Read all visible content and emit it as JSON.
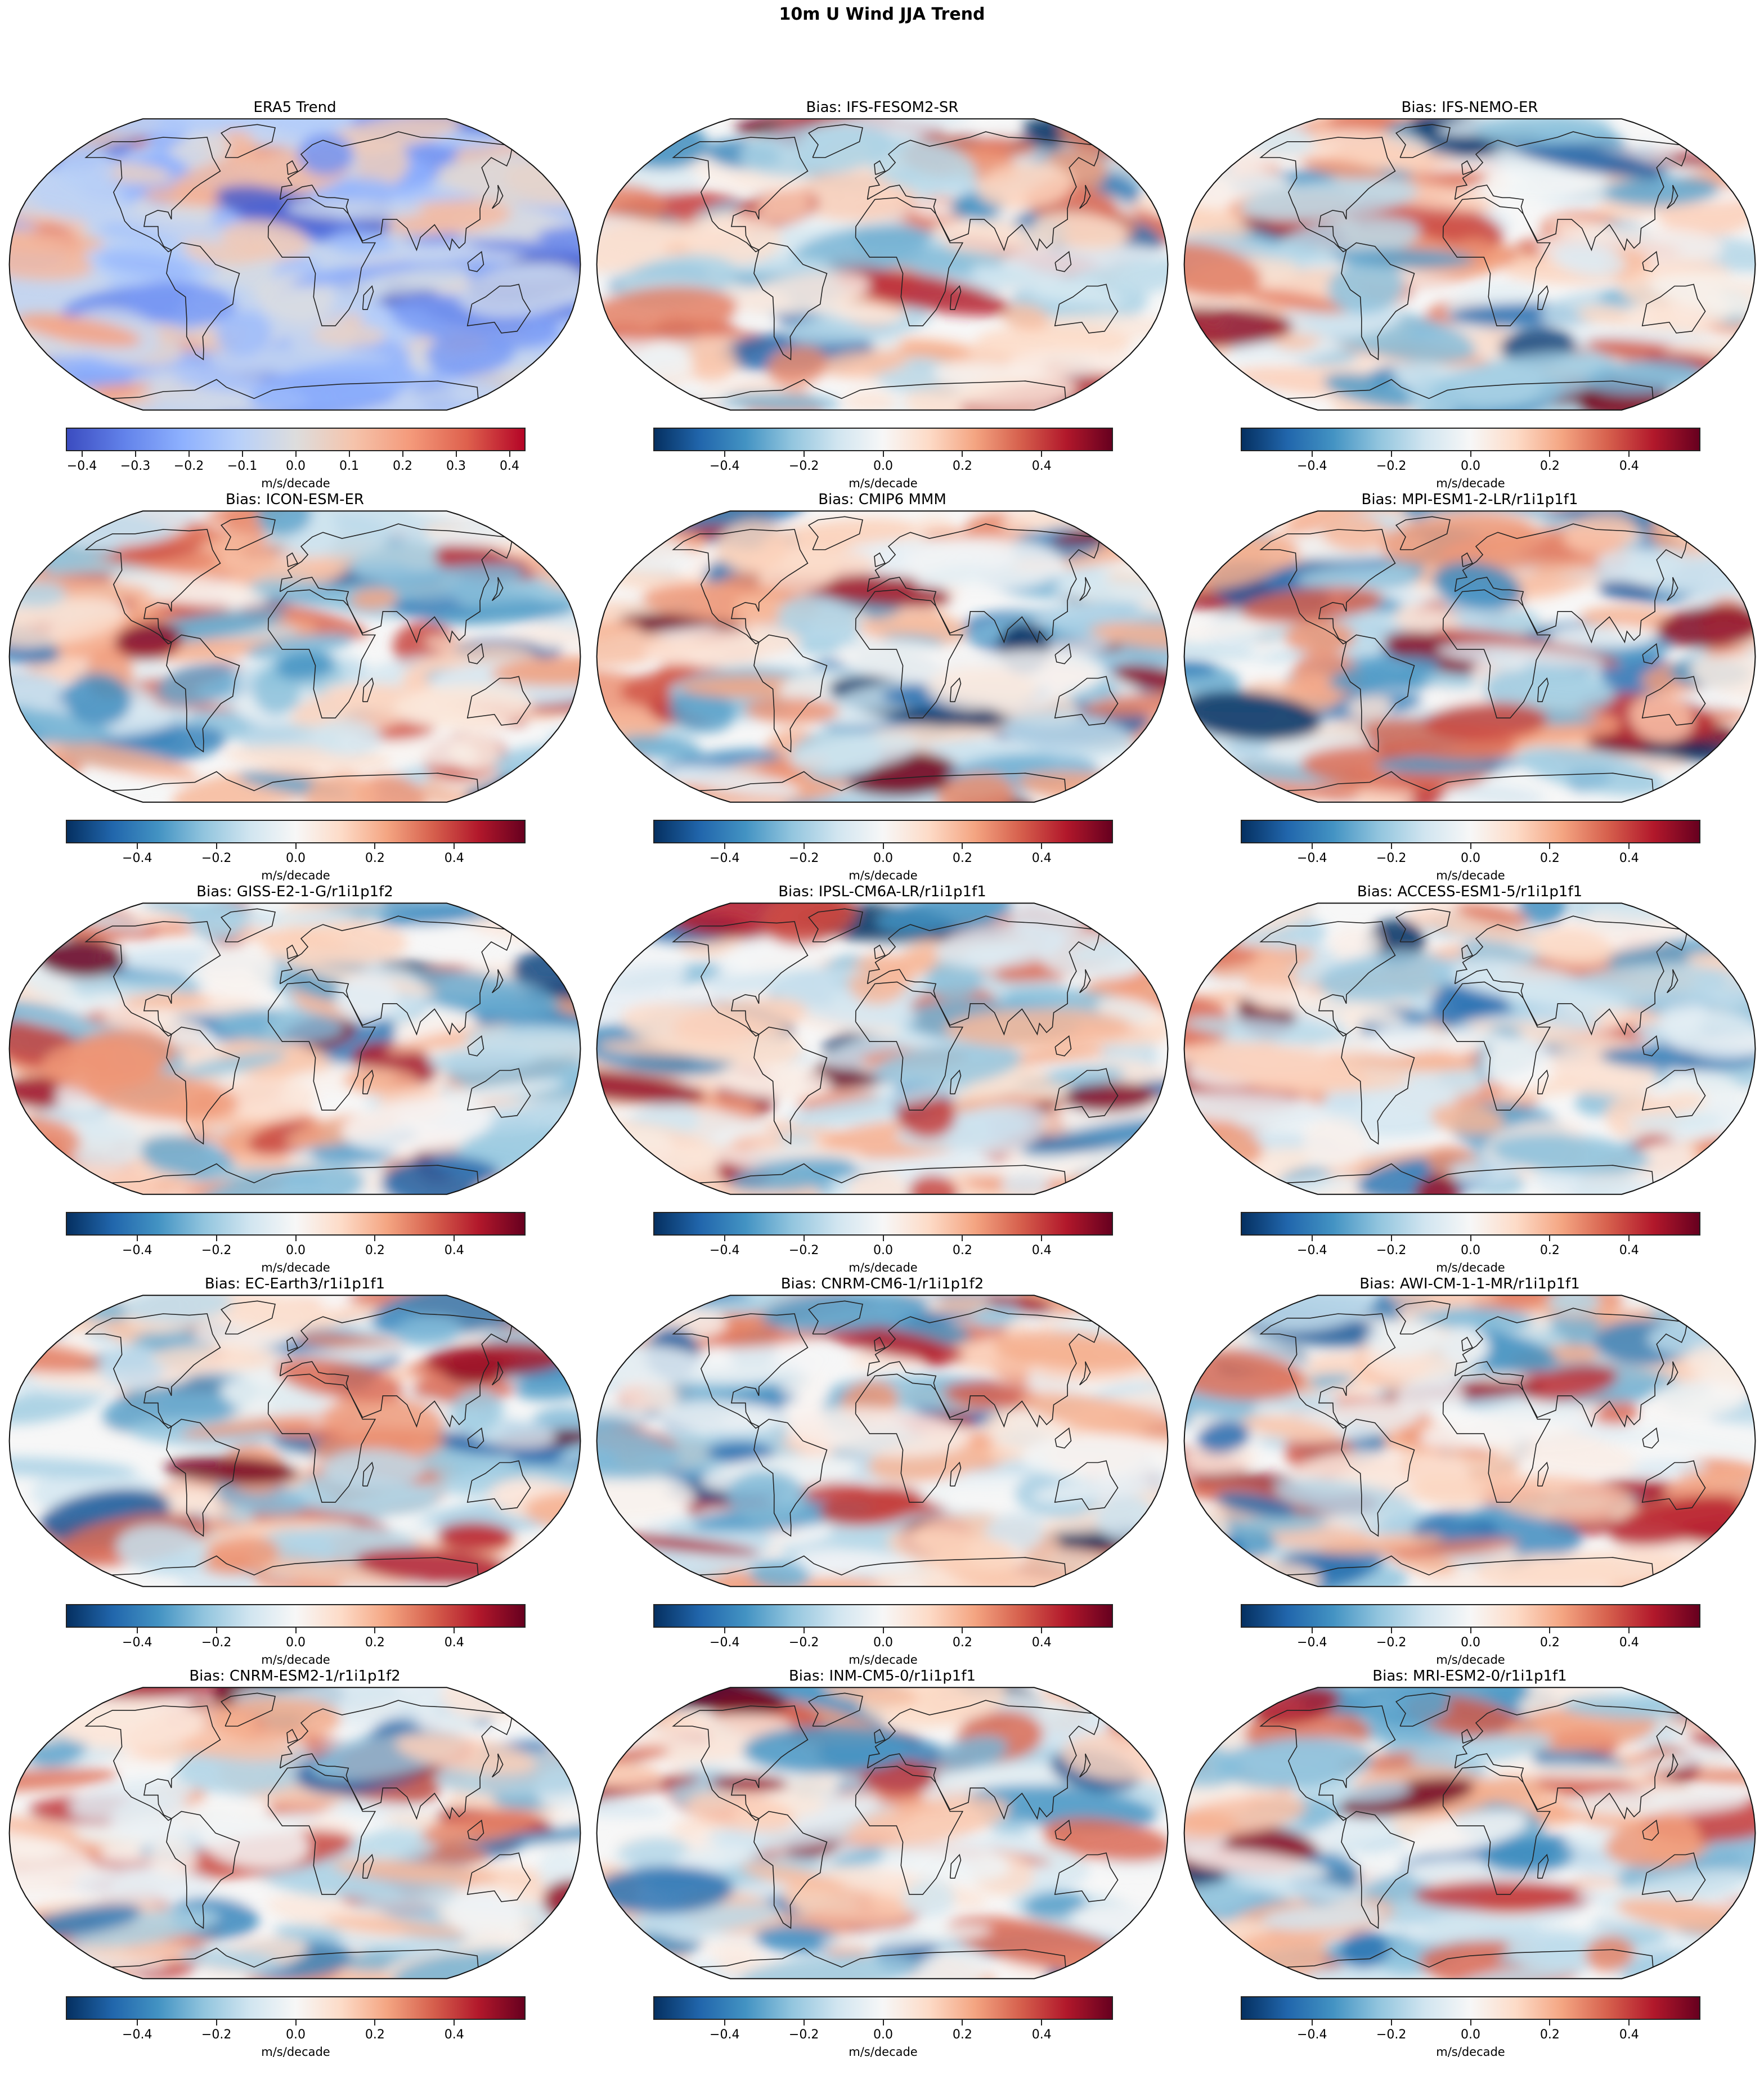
{
  "figure": {
    "title": "10m U Wind JJA Trend"
  },
  "colormaps": {
    "coolwarm": [
      "#3b4cc0",
      "#6282ea",
      "#8db0fe",
      "#b8d0f9",
      "#dddddd",
      "#f5c4ac",
      "#f49a7b",
      "#de604d",
      "#b40426"
    ],
    "RdBu_r": [
      "#053061",
      "#2166ac",
      "#4393c3",
      "#92c5de",
      "#d1e5f0",
      "#f7f7f7",
      "#fddbc7",
      "#f4a582",
      "#d6604d",
      "#b2182b",
      "#67001f"
    ]
  },
  "chart_data": [
    {
      "type": "heatmap",
      "title": "ERA5 Trend",
      "cmap": "coolwarm",
      "vmin": -0.43,
      "vmax": 0.43,
      "colorbar_label": "m/s/decade",
      "colorbar_ticks": [
        -0.4,
        -0.3,
        -0.2,
        -0.1,
        0.0,
        0.1,
        0.2,
        0.3,
        0.4
      ],
      "colorbar_tick_labels": [
        "−0.4",
        "−0.3",
        "−0.2",
        "−0.1",
        "0.0",
        "0.1",
        "0.2",
        "0.3",
        "0.4"
      ]
    },
    {
      "type": "heatmap",
      "title": "Bias: IFS-FESOM2-SR",
      "cmap": "RdBu_r",
      "vmin": -0.58,
      "vmax": 0.58,
      "colorbar_label": "m/s/decade",
      "colorbar_ticks": [
        -0.4,
        -0.2,
        0.0,
        0.2,
        0.4
      ],
      "colorbar_tick_labels": [
        "−0.4",
        "−0.2",
        "0.0",
        "0.2",
        "0.4"
      ]
    },
    {
      "type": "heatmap",
      "title": "Bias: IFS-NEMO-ER",
      "cmap": "RdBu_r",
      "vmin": -0.58,
      "vmax": 0.58,
      "colorbar_label": "m/s/decade",
      "colorbar_ticks": [
        -0.4,
        -0.2,
        0.0,
        0.2,
        0.4
      ],
      "colorbar_tick_labels": [
        "−0.4",
        "−0.2",
        "0.0",
        "0.2",
        "0.4"
      ]
    },
    {
      "type": "heatmap",
      "title": "Bias: ICON-ESM-ER",
      "cmap": "RdBu_r",
      "vmin": -0.58,
      "vmax": 0.58,
      "colorbar_label": "m/s/decade",
      "colorbar_ticks": [
        -0.4,
        -0.2,
        0.0,
        0.2,
        0.4
      ],
      "colorbar_tick_labels": [
        "−0.4",
        "−0.2",
        "0.0",
        "0.2",
        "0.4"
      ]
    },
    {
      "type": "heatmap",
      "title": "Bias: CMIP6 MMM",
      "cmap": "RdBu_r",
      "vmin": -0.58,
      "vmax": 0.58,
      "colorbar_label": "m/s/decade",
      "colorbar_ticks": [
        -0.4,
        -0.2,
        0.0,
        0.2,
        0.4
      ],
      "colorbar_tick_labels": [
        "−0.4",
        "−0.2",
        "0.0",
        "0.2",
        "0.4"
      ]
    },
    {
      "type": "heatmap",
      "title": "Bias: MPI-ESM1-2-LR/r1i1p1f1",
      "cmap": "RdBu_r",
      "vmin": -0.58,
      "vmax": 0.58,
      "colorbar_label": "m/s/decade",
      "colorbar_ticks": [
        -0.4,
        -0.2,
        0.0,
        0.2,
        0.4
      ],
      "colorbar_tick_labels": [
        "−0.4",
        "−0.2",
        "0.0",
        "0.2",
        "0.4"
      ]
    },
    {
      "type": "heatmap",
      "title": "Bias: GISS-E2-1-G/r1i1p1f2",
      "cmap": "RdBu_r",
      "vmin": -0.58,
      "vmax": 0.58,
      "colorbar_label": "m/s/decade",
      "colorbar_ticks": [
        -0.4,
        -0.2,
        0.0,
        0.2,
        0.4
      ],
      "colorbar_tick_labels": [
        "−0.4",
        "−0.2",
        "0.0",
        "0.2",
        "0.4"
      ]
    },
    {
      "type": "heatmap",
      "title": "Bias: IPSL-CM6A-LR/r1i1p1f1",
      "cmap": "RdBu_r",
      "vmin": -0.58,
      "vmax": 0.58,
      "colorbar_label": "m/s/decade",
      "colorbar_ticks": [
        -0.4,
        -0.2,
        0.0,
        0.2,
        0.4
      ],
      "colorbar_tick_labels": [
        "−0.4",
        "−0.2",
        "0.0",
        "0.2",
        "0.4"
      ]
    },
    {
      "type": "heatmap",
      "title": "Bias: ACCESS-ESM1-5/r1i1p1f1",
      "cmap": "RdBu_r",
      "vmin": -0.58,
      "vmax": 0.58,
      "colorbar_label": "m/s/decade",
      "colorbar_ticks": [
        -0.4,
        -0.2,
        0.0,
        0.2,
        0.4
      ],
      "colorbar_tick_labels": [
        "−0.4",
        "−0.2",
        "0.0",
        "0.2",
        "0.4"
      ]
    },
    {
      "type": "heatmap",
      "title": "Bias: EC-Earth3/r1i1p1f1",
      "cmap": "RdBu_r",
      "vmin": -0.58,
      "vmax": 0.58,
      "colorbar_label": "m/s/decade",
      "colorbar_ticks": [
        -0.4,
        -0.2,
        0.0,
        0.2,
        0.4
      ],
      "colorbar_tick_labels": [
        "−0.4",
        "−0.2",
        "0.0",
        "0.2",
        "0.4"
      ]
    },
    {
      "type": "heatmap",
      "title": "Bias: CNRM-CM6-1/r1i1p1f2",
      "cmap": "RdBu_r",
      "vmin": -0.58,
      "vmax": 0.58,
      "colorbar_label": "m/s/decade",
      "colorbar_ticks": [
        -0.4,
        -0.2,
        0.0,
        0.2,
        0.4
      ],
      "colorbar_tick_labels": [
        "−0.4",
        "−0.2",
        "0.0",
        "0.2",
        "0.4"
      ]
    },
    {
      "type": "heatmap",
      "title": "Bias: AWI-CM-1-1-MR/r1i1p1f1",
      "cmap": "RdBu_r",
      "vmin": -0.58,
      "vmax": 0.58,
      "colorbar_label": "m/s/decade",
      "colorbar_ticks": [
        -0.4,
        -0.2,
        0.0,
        0.2,
        0.4
      ],
      "colorbar_tick_labels": [
        "−0.4",
        "−0.2",
        "0.0",
        "0.2",
        "0.4"
      ]
    },
    {
      "type": "heatmap",
      "title": "Bias: CNRM-ESM2-1/r1i1p1f2",
      "cmap": "RdBu_r",
      "vmin": -0.58,
      "vmax": 0.58,
      "colorbar_label": "m/s/decade",
      "colorbar_ticks": [
        -0.4,
        -0.2,
        0.0,
        0.2,
        0.4
      ],
      "colorbar_tick_labels": [
        "−0.4",
        "−0.2",
        "0.0",
        "0.2",
        "0.4"
      ]
    },
    {
      "type": "heatmap",
      "title": "Bias: INM-CM5-0/r1i1p1f1",
      "cmap": "RdBu_r",
      "vmin": -0.58,
      "vmax": 0.58,
      "colorbar_label": "m/s/decade",
      "colorbar_ticks": [
        -0.4,
        -0.2,
        0.0,
        0.2,
        0.4
      ],
      "colorbar_tick_labels": [
        "−0.4",
        "−0.2",
        "0.0",
        "0.2",
        "0.4"
      ]
    },
    {
      "type": "heatmap",
      "title": "Bias: MRI-ESM2-0/r1i1p1f1",
      "cmap": "RdBu_r",
      "vmin": -0.58,
      "vmax": 0.58,
      "colorbar_label": "m/s/decade",
      "colorbar_ticks": [
        -0.4,
        -0.2,
        0.0,
        0.2,
        0.4
      ],
      "colorbar_tick_labels": [
        "−0.4",
        "−0.2",
        "0.0",
        "0.2",
        "0.4"
      ]
    }
  ]
}
